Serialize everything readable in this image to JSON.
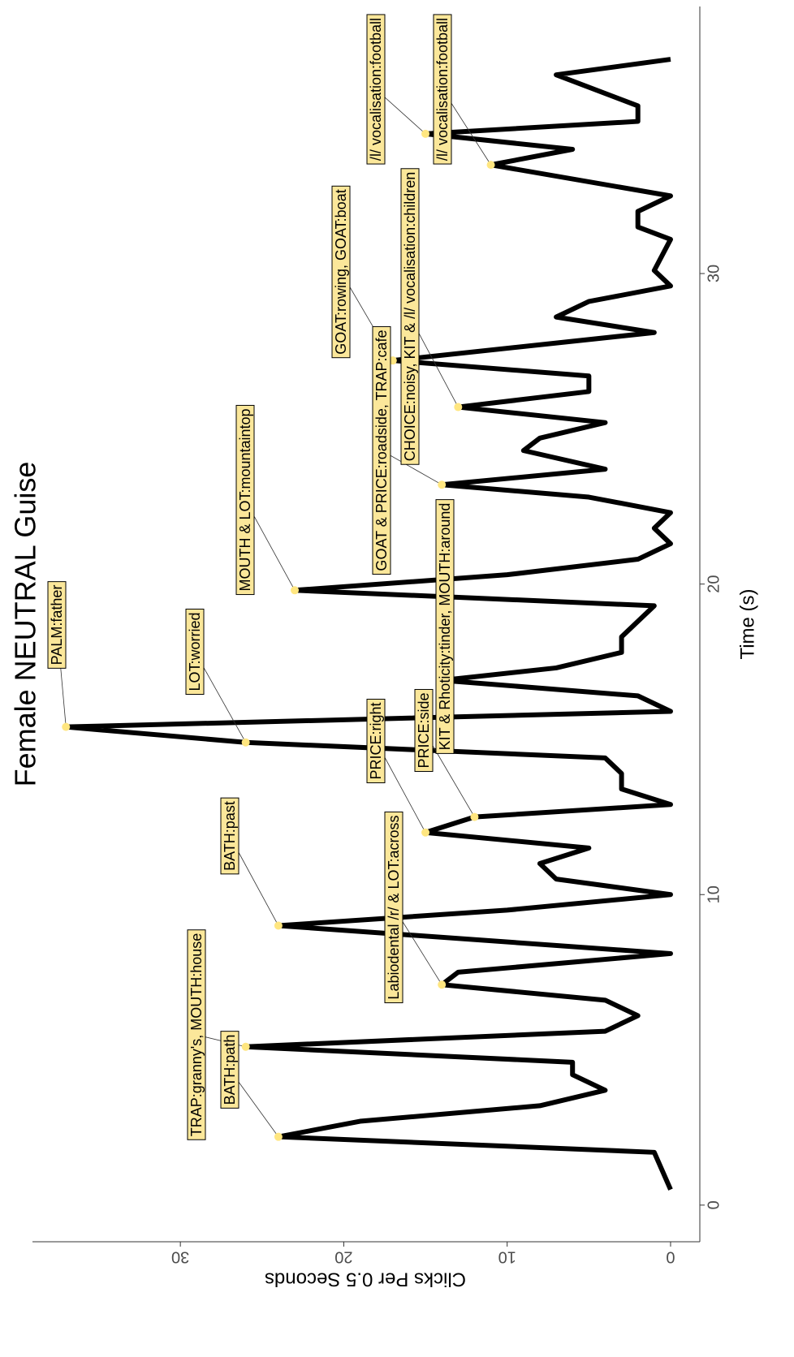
{
  "chart_data": {
    "type": "line",
    "title": "Female NEUTRAL Guise",
    "x_label": "Time (s)",
    "y_label": "Clicks Per 0.5 Seconds",
    "x": [
      0.5,
      1.7,
      2.2,
      2.7,
      3.2,
      3.7,
      4.2,
      4.6,
      5.1,
      5.6,
      6.1,
      6.6,
      7.1,
      7.5,
      8.1,
      9.0,
      9.5,
      10.0,
      10.5,
      11.0,
      11.5,
      12.0,
      12.5,
      12.9,
      13.4,
      13.9,
      14.4,
      14.9,
      15.4,
      15.9,
      16.4,
      16.9,
      17.3,
      17.8,
      18.3,
      19.3,
      19.8,
      20.3,
      20.8,
      21.3,
      21.8,
      22.3,
      22.8,
      23.2,
      23.7,
      24.3,
      24.7,
      25.2,
      25.7,
      26.2,
      26.7,
      27.2,
      28.1,
      28.6,
      29.1,
      29.6,
      30.1,
      31.1,
      31.5,
      32.0,
      32.5,
      33.5,
      34.0,
      34.5,
      34.9,
      35.4,
      36.4,
      36.9
    ],
    "values": [
      0,
      1,
      24,
      19,
      8,
      4,
      6,
      6,
      26,
      4,
      2,
      4,
      14,
      13,
      0,
      24,
      10,
      0,
      7,
      8,
      5,
      15,
      12,
      0,
      3,
      3,
      4,
      26,
      37,
      0,
      2,
      14,
      7,
      3,
      3,
      1,
      23,
      10,
      2,
      0,
      1,
      0,
      5,
      14,
      4,
      9,
      8,
      4,
      13,
      5,
      5,
      17,
      1,
      7,
      5,
      0,
      1,
      0,
      2,
      2,
      0,
      11,
      6,
      15,
      2,
      2,
      7,
      0
    ],
    "color": "#000000",
    "point_color": "#ffe680",
    "label_fill": "#fbe79a",
    "xlim": [
      -1.18,
      38.6
    ],
    "ylim": [
      -1.79,
      39.05
    ],
    "xticks": [
      0,
      10,
      20,
      30
    ],
    "yticks": [
      0,
      10,
      20,
      30
    ],
    "grid": false,
    "annotations": [
      {
        "label": "BATH:path",
        "x": 2.2,
        "y": 24
      },
      {
        "label": "TRAP:granny's, MOUTH:house",
        "x": 5.1,
        "y": 26
      },
      {
        "label": "Labiodental /r/ & LOT:across",
        "x": 7.1,
        "y": 14
      },
      {
        "label": "BATH:past",
        "x": 9.0,
        "y": 24
      },
      {
        "label": "PRICE:right",
        "x": 12.0,
        "y": 15
      },
      {
        "label": "PRICE:side",
        "x": 12.5,
        "y": 12
      },
      {
        "label": "LOT:worried",
        "x": 14.9,
        "y": 26
      },
      {
        "label": "PALM:father",
        "x": 15.4,
        "y": 37
      },
      {
        "label": "KIT & Rhoticity:tinder, MOUTH:around",
        "x": 16.9,
        "y": 14
      },
      {
        "label": "MOUTH & LOT:mountaintop",
        "x": 19.8,
        "y": 23
      },
      {
        "label": "GOAT & PRICE:roadside, TRAP:cafe",
        "x": 23.2,
        "y": 14
      },
      {
        "label": "CHOICE:noisy, KIT & /l/ vocalisation:children",
        "x": 25.7,
        "y": 13
      },
      {
        "label": "GOAT:rowing, GOAT:boat",
        "x": 27.2,
        "y": 17
      },
      {
        "label": "/l/ vocalisation:football",
        "x": 34.5,
        "y": 15
      },
      {
        "label": "/l/ vocalisation:football",
        "x": 33.5,
        "y": 11
      }
    ]
  }
}
